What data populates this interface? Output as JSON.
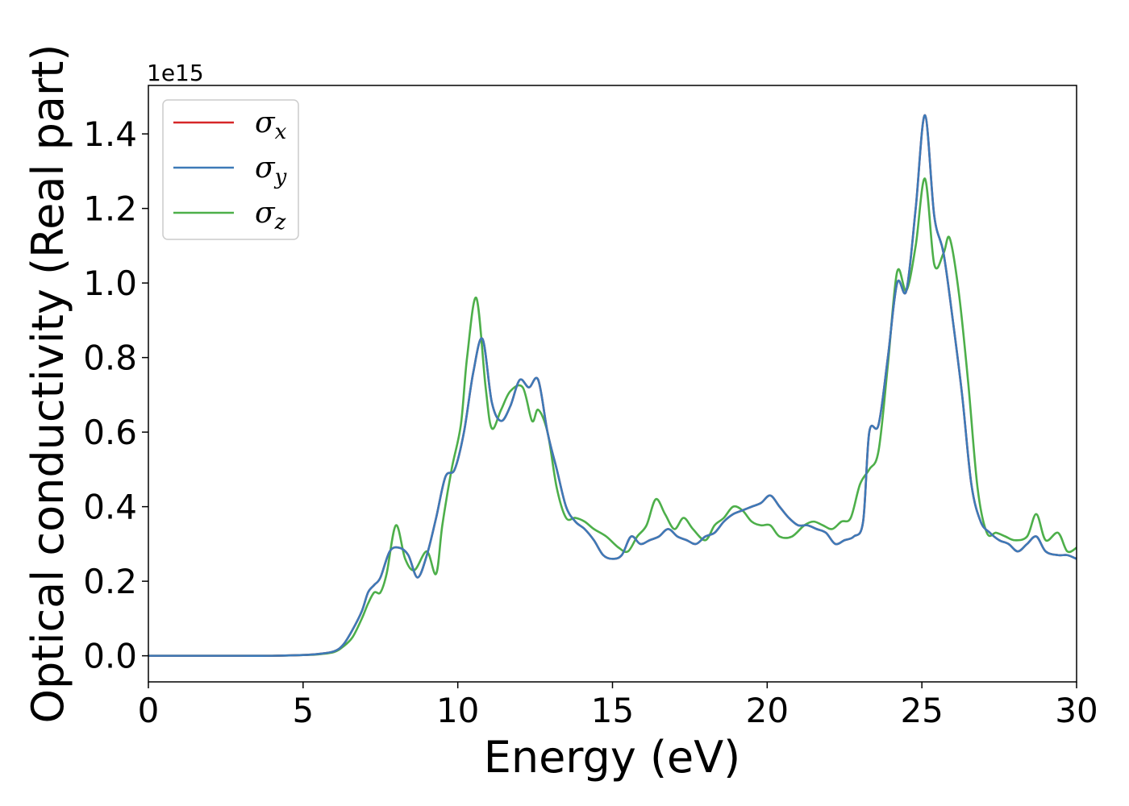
{
  "chart_data": {
    "type": "line",
    "title": "",
    "xlabel": "Energy (eV)",
    "ylabel": "Optical conductivity (Real part)",
    "y_offset_label": "1e15",
    "xlim": [
      0,
      30
    ],
    "ylim": [
      -0.07,
      1.53
    ],
    "x_ticks": [
      0,
      5,
      10,
      15,
      20,
      25,
      30
    ],
    "x_tick_labels": [
      "0",
      "5",
      "10",
      "15",
      "20",
      "25",
      "30"
    ],
    "y_ticks": [
      0.0,
      0.2,
      0.4,
      0.6,
      0.8,
      1.0,
      1.2,
      1.4
    ],
    "y_tick_labels": [
      "0.0",
      "0.2",
      "0.4",
      "0.6",
      "0.8",
      "1.0",
      "1.2",
      "1.4"
    ],
    "grid": false,
    "legend_position": "top-left",
    "series": [
      {
        "name": "σx",
        "label_symbol": "σ",
        "label_subscript": "x",
        "color": "#d62728",
        "x": [
          0,
          1,
          2,
          3,
          4,
          5,
          5.5,
          6,
          6.3,
          6.6,
          6.9,
          7.1,
          7.3,
          7.5,
          7.8,
          8.1,
          8.4,
          8.7,
          9.0,
          9.3,
          9.6,
          9.9,
          10.2,
          10.5,
          10.8,
          11.1,
          11.4,
          11.7,
          12.0,
          12.3,
          12.6,
          12.9,
          13.2,
          13.5,
          13.8,
          14.1,
          14.4,
          14.7,
          15.0,
          15.3,
          15.6,
          15.9,
          16.2,
          16.5,
          16.8,
          17.1,
          17.4,
          17.7,
          18.0,
          18.3,
          18.6,
          18.9,
          19.2,
          19.5,
          19.8,
          20.1,
          20.4,
          20.7,
          21.0,
          21.3,
          21.6,
          21.9,
          22.2,
          22.5,
          22.8,
          23.1,
          23.3,
          23.6,
          23.9,
          24.2,
          24.5,
          24.8,
          25.1,
          25.4,
          25.7,
          26.0,
          26.3,
          26.6,
          26.9,
          27.2,
          27.5,
          27.8,
          28.1,
          28.4,
          28.7,
          29.0,
          29.4,
          29.7,
          30.0
        ],
        "y": [
          0,
          0,
          0,
          0,
          0,
          0.002,
          0.005,
          0.012,
          0.03,
          0.07,
          0.12,
          0.17,
          0.19,
          0.21,
          0.28,
          0.29,
          0.27,
          0.21,
          0.27,
          0.37,
          0.48,
          0.5,
          0.6,
          0.76,
          0.85,
          0.68,
          0.63,
          0.67,
          0.74,
          0.72,
          0.74,
          0.6,
          0.5,
          0.4,
          0.36,
          0.34,
          0.31,
          0.27,
          0.26,
          0.27,
          0.32,
          0.3,
          0.31,
          0.32,
          0.34,
          0.32,
          0.31,
          0.3,
          0.32,
          0.33,
          0.36,
          0.38,
          0.39,
          0.4,
          0.41,
          0.43,
          0.4,
          0.37,
          0.35,
          0.35,
          0.34,
          0.33,
          0.3,
          0.31,
          0.32,
          0.36,
          0.6,
          0.62,
          0.8,
          1.0,
          0.98,
          1.2,
          1.45,
          1.18,
          1.08,
          0.9,
          0.7,
          0.46,
          0.36,
          0.33,
          0.31,
          0.3,
          0.28,
          0.3,
          0.32,
          0.28,
          0.27,
          0.27,
          0.26
        ]
      },
      {
        "name": "σy",
        "label_symbol": "σ",
        "label_subscript": "y",
        "color": "#3d7ab8",
        "x": [
          0,
          1,
          2,
          3,
          4,
          5,
          5.5,
          6,
          6.3,
          6.6,
          6.9,
          7.1,
          7.3,
          7.5,
          7.8,
          8.1,
          8.4,
          8.7,
          9.0,
          9.3,
          9.6,
          9.9,
          10.2,
          10.5,
          10.8,
          11.1,
          11.4,
          11.7,
          12.0,
          12.3,
          12.6,
          12.9,
          13.2,
          13.5,
          13.8,
          14.1,
          14.4,
          14.7,
          15.0,
          15.3,
          15.6,
          15.9,
          16.2,
          16.5,
          16.8,
          17.1,
          17.4,
          17.7,
          18.0,
          18.3,
          18.6,
          18.9,
          19.2,
          19.5,
          19.8,
          20.1,
          20.4,
          20.7,
          21.0,
          21.3,
          21.6,
          21.9,
          22.2,
          22.5,
          22.8,
          23.1,
          23.3,
          23.6,
          23.9,
          24.2,
          24.5,
          24.8,
          25.1,
          25.4,
          25.7,
          26.0,
          26.3,
          26.6,
          26.9,
          27.2,
          27.5,
          27.8,
          28.1,
          28.4,
          28.7,
          29.0,
          29.4,
          29.7,
          30.0
        ],
        "y": [
          0,
          0,
          0,
          0,
          0,
          0.002,
          0.005,
          0.012,
          0.03,
          0.07,
          0.12,
          0.17,
          0.19,
          0.21,
          0.28,
          0.29,
          0.27,
          0.21,
          0.27,
          0.37,
          0.48,
          0.5,
          0.6,
          0.76,
          0.85,
          0.68,
          0.63,
          0.67,
          0.74,
          0.72,
          0.74,
          0.6,
          0.5,
          0.4,
          0.36,
          0.34,
          0.31,
          0.27,
          0.26,
          0.27,
          0.32,
          0.3,
          0.31,
          0.32,
          0.34,
          0.32,
          0.31,
          0.3,
          0.32,
          0.33,
          0.36,
          0.38,
          0.39,
          0.4,
          0.41,
          0.43,
          0.4,
          0.37,
          0.35,
          0.35,
          0.34,
          0.33,
          0.3,
          0.31,
          0.32,
          0.36,
          0.6,
          0.62,
          0.8,
          1.0,
          0.98,
          1.2,
          1.45,
          1.18,
          1.08,
          0.9,
          0.7,
          0.46,
          0.36,
          0.33,
          0.31,
          0.3,
          0.28,
          0.3,
          0.32,
          0.28,
          0.27,
          0.27,
          0.26
        ]
      },
      {
        "name": "σz",
        "label_symbol": "σ",
        "label_subscript": "z",
        "color": "#4daf4a",
        "x": [
          0,
          1,
          2,
          3,
          4,
          5,
          5.5,
          6,
          6.3,
          6.6,
          6.9,
          7.1,
          7.3,
          7.5,
          7.7,
          8.0,
          8.3,
          8.6,
          9.0,
          9.3,
          9.5,
          9.8,
          10.1,
          10.3,
          10.6,
          10.9,
          11.1,
          11.4,
          11.7,
          12.1,
          12.4,
          12.6,
          12.9,
          13.2,
          13.5,
          13.8,
          14.1,
          14.4,
          14.8,
          15.2,
          15.5,
          15.8,
          16.1,
          16.4,
          16.7,
          17.0,
          17.3,
          17.6,
          18.0,
          18.3,
          18.6,
          18.9,
          19.2,
          19.5,
          19.8,
          20.1,
          20.4,
          20.8,
          21.2,
          21.5,
          21.8,
          22.1,
          22.4,
          22.7,
          23.0,
          23.3,
          23.6,
          23.9,
          24.2,
          24.5,
          24.8,
          25.1,
          25.4,
          25.7,
          25.9,
          26.2,
          26.5,
          26.8,
          27.1,
          27.4,
          27.7,
          28.0,
          28.4,
          28.7,
          29.0,
          29.4,
          29.7,
          30.0
        ],
        "y": [
          0,
          0,
          0,
          0,
          0,
          0.002,
          0.004,
          0.01,
          0.025,
          0.05,
          0.1,
          0.14,
          0.17,
          0.17,
          0.22,
          0.35,
          0.26,
          0.23,
          0.28,
          0.22,
          0.35,
          0.5,
          0.62,
          0.8,
          0.96,
          0.72,
          0.61,
          0.66,
          0.71,
          0.72,
          0.63,
          0.66,
          0.6,
          0.45,
          0.37,
          0.37,
          0.36,
          0.34,
          0.32,
          0.29,
          0.28,
          0.32,
          0.35,
          0.42,
          0.38,
          0.34,
          0.37,
          0.34,
          0.31,
          0.35,
          0.37,
          0.4,
          0.39,
          0.36,
          0.35,
          0.35,
          0.32,
          0.32,
          0.35,
          0.36,
          0.35,
          0.34,
          0.36,
          0.37,
          0.46,
          0.5,
          0.55,
          0.78,
          1.03,
          0.98,
          1.1,
          1.28,
          1.05,
          1.08,
          1.12,
          0.97,
          0.73,
          0.45,
          0.33,
          0.33,
          0.32,
          0.31,
          0.32,
          0.38,
          0.31,
          0.33,
          0.28,
          0.29
        ]
      }
    ]
  }
}
